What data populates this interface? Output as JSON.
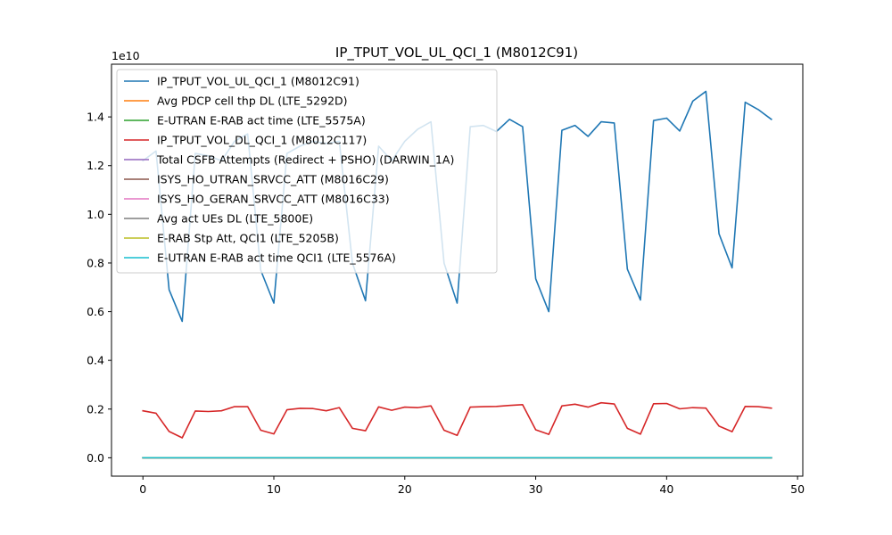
{
  "chart_data": {
    "type": "line",
    "title": "IP_TPUT_VOL_UL_QCI_1 (M8012C91)",
    "xlabel": "",
    "ylabel": "",
    "y_offset_label": "1e10",
    "xlim": [
      -2.4,
      50.4
    ],
    "ylim": [
      -0.0755,
      1.6165
    ],
    "y_scale": 10000000000,
    "x_ticks": [
      0,
      10,
      20,
      30,
      40,
      50
    ],
    "x_tick_labels": [
      "0",
      "10",
      "20",
      "30",
      "40",
      "50"
    ],
    "y_ticks": [
      0.0,
      0.2,
      0.4,
      0.6,
      0.8,
      1.0,
      1.2,
      1.4
    ],
    "y_tick_labels": [
      "0.0",
      "0.2",
      "0.4",
      "0.6",
      "0.8",
      "1.0",
      "1.2",
      "1.4"
    ],
    "grid": false,
    "legend_position": "top-left",
    "x": [
      0,
      1,
      2,
      3,
      4,
      5,
      6,
      7,
      8,
      9,
      10,
      11,
      12,
      13,
      14,
      15,
      16,
      17,
      18,
      19,
      20,
      21,
      22,
      23,
      24,
      25,
      26,
      27,
      28,
      29,
      30,
      31,
      32,
      33,
      34,
      35,
      36,
      37,
      38,
      39,
      40,
      41,
      42,
      43,
      44,
      45,
      46,
      47,
      48
    ],
    "series": [
      {
        "name": "IP_TPUT_VOL_UL_QCI_1 (M8012C91)",
        "color": "#1f77b4",
        "values": [
          1.22,
          1.26,
          0.69,
          0.56,
          1.25,
          1.24,
          1.22,
          1.3,
          1.33,
          0.77,
          0.635,
          1.25,
          1.28,
          1.3,
          1.29,
          1.3,
          0.8,
          0.645,
          1.28,
          1.22,
          1.3,
          1.35,
          1.38,
          0.8,
          0.635,
          1.36,
          1.365,
          1.34,
          1.39,
          1.36,
          0.735,
          0.6,
          1.345,
          1.365,
          1.32,
          1.38,
          1.375,
          0.775,
          0.648,
          1.385,
          1.395,
          1.342,
          1.465,
          1.505,
          0.92,
          0.78,
          1.46,
          1.43,
          1.39
        ]
      },
      {
        "name": "Avg PDCP cell thp DL (LTE_5292D)",
        "color": "#ff7f0e",
        "values": [
          0,
          0,
          0,
          0,
          0,
          0,
          0,
          0,
          0,
          0,
          0,
          0,
          0,
          0,
          0,
          0,
          0,
          0,
          0,
          0,
          0,
          0,
          0,
          0,
          0,
          0,
          0,
          0,
          0,
          0,
          0,
          0,
          0,
          0,
          0,
          0,
          0,
          0,
          0,
          0,
          0,
          0,
          0,
          0,
          0,
          0,
          0,
          0,
          0
        ]
      },
      {
        "name": "E-UTRAN E-RAB act time (LTE_5575A)",
        "color": "#2ca02c",
        "values": [
          0,
          0,
          0,
          0,
          0,
          0,
          0,
          0,
          0,
          0,
          0,
          0,
          0,
          0,
          0,
          0,
          0,
          0,
          0,
          0,
          0,
          0,
          0,
          0,
          0,
          0,
          0,
          0,
          0,
          0,
          0,
          0,
          0,
          0,
          0,
          0,
          0,
          0,
          0,
          0,
          0,
          0,
          0,
          0,
          0,
          0,
          0,
          0,
          0
        ]
      },
      {
        "name": "IP_TPUT_VOL_DL_QCI_1 (M8012C117)",
        "color": "#d62728",
        "values": [
          0.193,
          0.183,
          0.108,
          0.082,
          0.192,
          0.19,
          0.193,
          0.21,
          0.21,
          0.113,
          0.098,
          0.197,
          0.203,
          0.202,
          0.193,
          0.206,
          0.121,
          0.111,
          0.209,
          0.195,
          0.208,
          0.206,
          0.213,
          0.113,
          0.092,
          0.208,
          0.21,
          0.211,
          0.215,
          0.218,
          0.115,
          0.096,
          0.213,
          0.22,
          0.208,
          0.226,
          0.221,
          0.121,
          0.097,
          0.222,
          0.223,
          0.201,
          0.206,
          0.204,
          0.13,
          0.107,
          0.211,
          0.21,
          0.204
        ]
      },
      {
        "name": "Total CSFB Attempts (Redirect + PSHO) (DARWIN_1A)",
        "color": "#9467bd",
        "values": [
          0,
          0,
          0,
          0,
          0,
          0,
          0,
          0,
          0,
          0,
          0,
          0,
          0,
          0,
          0,
          0,
          0,
          0,
          0,
          0,
          0,
          0,
          0,
          0,
          0,
          0,
          0,
          0,
          0,
          0,
          0,
          0,
          0,
          0,
          0,
          0,
          0,
          0,
          0,
          0,
          0,
          0,
          0,
          0,
          0,
          0,
          0,
          0,
          0
        ]
      },
      {
        "name": "ISYS_HO_UTRAN_SRVCC_ATT (M8016C29)",
        "color": "#8c564b",
        "values": [
          0,
          0,
          0,
          0,
          0,
          0,
          0,
          0,
          0,
          0,
          0,
          0,
          0,
          0,
          0,
          0,
          0,
          0,
          0,
          0,
          0,
          0,
          0,
          0,
          0,
          0,
          0,
          0,
          0,
          0,
          0,
          0,
          0,
          0,
          0,
          0,
          0,
          0,
          0,
          0,
          0,
          0,
          0,
          0,
          0,
          0,
          0,
          0,
          0
        ]
      },
      {
        "name": "ISYS_HO_GERAN_SRVCC_ATT (M8016C33)",
        "color": "#e377c2",
        "values": [
          0,
          0,
          0,
          0,
          0,
          0,
          0,
          0,
          0,
          0,
          0,
          0,
          0,
          0,
          0,
          0,
          0,
          0,
          0,
          0,
          0,
          0,
          0,
          0,
          0,
          0,
          0,
          0,
          0,
          0,
          0,
          0,
          0,
          0,
          0,
          0,
          0,
          0,
          0,
          0,
          0,
          0,
          0,
          0,
          0,
          0,
          0,
          0,
          0
        ]
      },
      {
        "name": "Avg act UEs DL (LTE_5800E)",
        "color": "#7f7f7f",
        "values": [
          0,
          0,
          0,
          0,
          0,
          0,
          0,
          0,
          0,
          0,
          0,
          0,
          0,
          0,
          0,
          0,
          0,
          0,
          0,
          0,
          0,
          0,
          0,
          0,
          0,
          0,
          0,
          0,
          0,
          0,
          0,
          0,
          0,
          0,
          0,
          0,
          0,
          0,
          0,
          0,
          0,
          0,
          0,
          0,
          0,
          0,
          0,
          0,
          0
        ]
      },
      {
        "name": "E-RAB Stp Att, QCI1 (LTE_5205B)",
        "color": "#bcbd22",
        "values": [
          0,
          0,
          0,
          0,
          0,
          0,
          0,
          0,
          0,
          0,
          0,
          0,
          0,
          0,
          0,
          0,
          0,
          0,
          0,
          0,
          0,
          0,
          0,
          0,
          0,
          0,
          0,
          0,
          0,
          0,
          0,
          0,
          0,
          0,
          0,
          0,
          0,
          0,
          0,
          0,
          0,
          0,
          0,
          0,
          0,
          0,
          0,
          0,
          0
        ]
      },
      {
        "name": "E-UTRAN E-RAB act time QCI1 (LTE_5576A)",
        "color": "#17becf",
        "values": [
          0,
          0,
          0,
          0,
          0,
          0,
          0,
          0,
          0,
          0,
          0,
          0,
          0,
          0,
          0,
          0,
          0,
          0,
          0,
          0,
          0,
          0,
          0,
          0,
          0,
          0,
          0,
          0,
          0,
          0,
          0,
          0,
          0,
          0,
          0,
          0,
          0,
          0,
          0,
          0,
          0,
          0,
          0,
          0,
          0,
          0,
          0,
          0,
          0
        ]
      }
    ]
  }
}
